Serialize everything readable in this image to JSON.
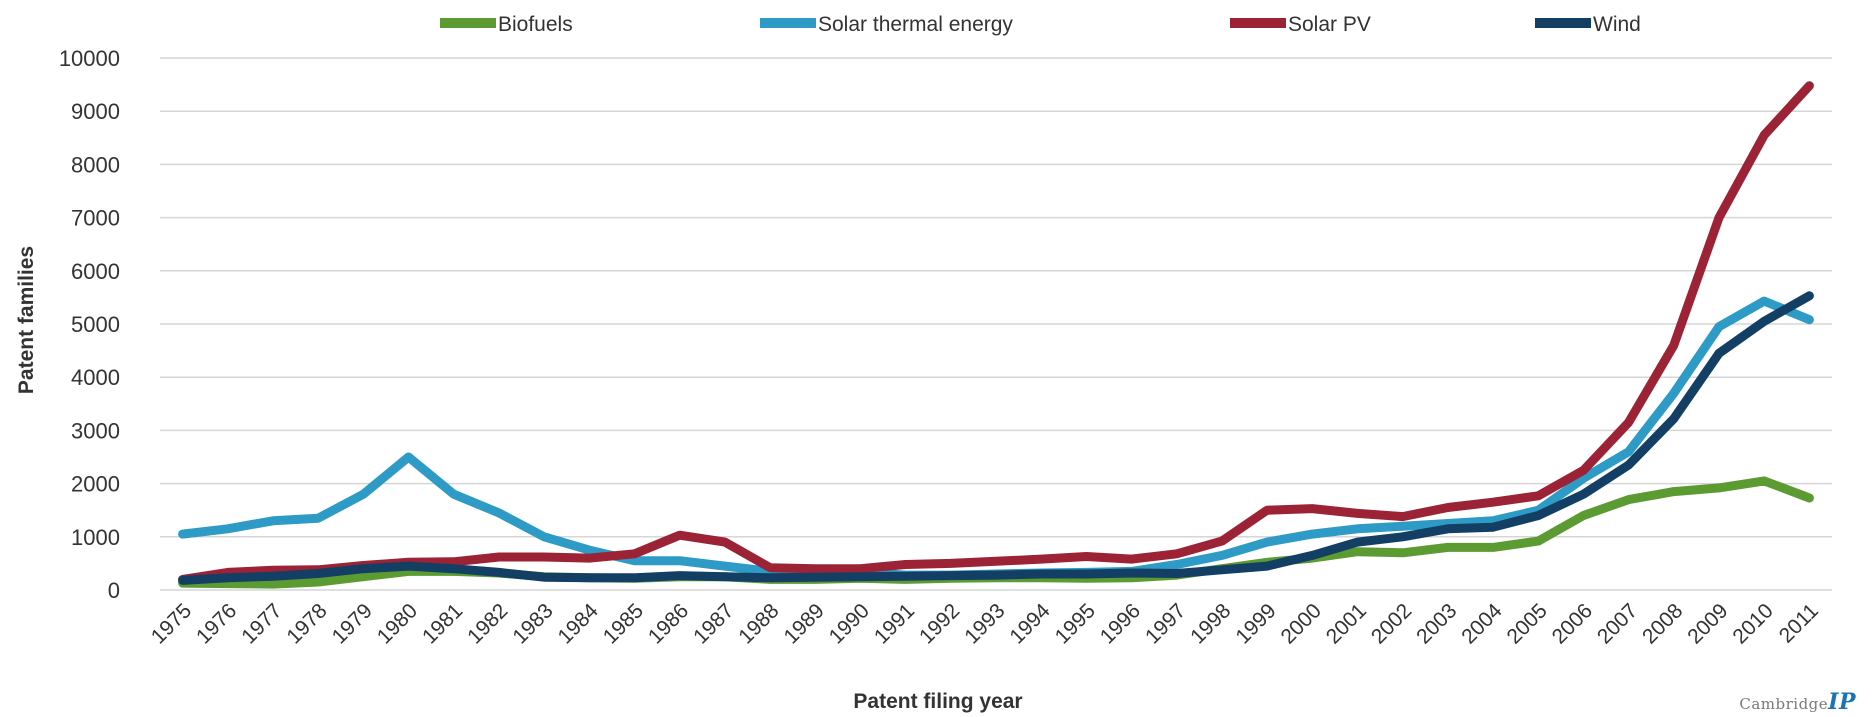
{
  "chart_data": {
    "type": "line",
    "title": "",
    "xlabel": "Patent filing year",
    "ylabel": "Patent families",
    "ylim": [
      0,
      10000
    ],
    "yticks": [
      0,
      1000,
      2000,
      3000,
      4000,
      5000,
      6000,
      7000,
      8000,
      9000,
      10000
    ],
    "grid": true,
    "legend_position": "top",
    "categories": [
      "1975",
      "1976",
      "1977",
      "1978",
      "1979",
      "1980",
      "1981",
      "1982",
      "1983",
      "1984",
      "1985",
      "1986",
      "1987",
      "1988",
      "1989",
      "1990",
      "1991",
      "1992",
      "1993",
      "1994",
      "1995",
      "1996",
      "1997",
      "1998",
      "1999",
      "2000",
      "2001",
      "2002",
      "2003",
      "2004",
      "2005",
      "2006",
      "2007",
      "2008",
      "2009",
      "2010",
      "2011"
    ],
    "series": [
      {
        "name": "Biofuels",
        "color": "#5b9b32",
        "values": [
          130,
          120,
          110,
          150,
          250,
          350,
          350,
          320,
          250,
          230,
          220,
          250,
          250,
          200,
          200,
          220,
          200,
          220,
          230,
          230,
          220,
          230,
          280,
          400,
          520,
          600,
          720,
          700,
          800,
          800,
          920,
          1400,
          1700,
          1850,
          1920,
          2050,
          1730
        ]
      },
      {
        "name": "Solar thermal energy",
        "color": "#2e9bc6",
        "values": [
          1050,
          1150,
          1300,
          1350,
          1800,
          2500,
          1800,
          1450,
          1000,
          750,
          550,
          550,
          450,
          350,
          350,
          330,
          280,
          280,
          300,
          320,
          330,
          350,
          480,
          650,
          900,
          1050,
          1150,
          1200,
          1250,
          1300,
          1500,
          2100,
          2600,
          3700,
          4950,
          5430,
          5080
        ]
      },
      {
        "name": "Solar PV",
        "color": "#9b2335",
        "values": [
          200,
          330,
          370,
          380,
          460,
          520,
          530,
          620,
          620,
          600,
          680,
          1030,
          900,
          420,
          400,
          400,
          480,
          500,
          540,
          580,
          630,
          580,
          680,
          920,
          1500,
          1530,
          1440,
          1380,
          1550,
          1650,
          1770,
          2250,
          3150,
          4600,
          7000,
          8550,
          9480
        ]
      },
      {
        "name": "Wind",
        "color": "#123f63",
        "values": [
          180,
          230,
          260,
          310,
          400,
          450,
          400,
          330,
          240,
          230,
          230,
          270,
          250,
          230,
          240,
          250,
          260,
          270,
          280,
          300,
          300,
          320,
          310,
          380,
          450,
          650,
          900,
          1000,
          1150,
          1180,
          1400,
          1800,
          2350,
          3220,
          4450,
          5050,
          5530
        ]
      }
    ]
  },
  "logo": {
    "text": "Cambridge",
    "mark": "IP"
  }
}
